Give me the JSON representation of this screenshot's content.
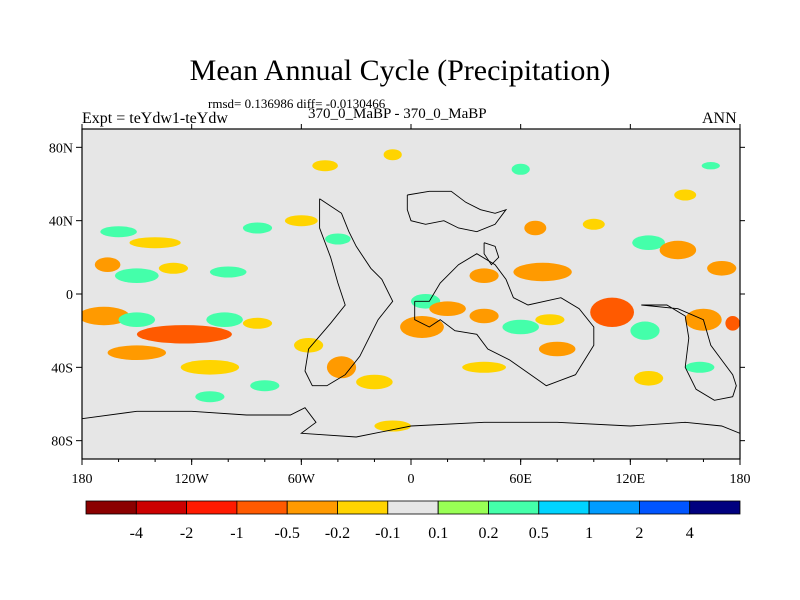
{
  "chart_data": {
    "type": "heatmap",
    "title": "Mean Annual Cycle (Precipitation)",
    "stats": "rmsd= 0.136986 diff= -0.0130466",
    "left_label": "Expt = teYdw1-teYdw",
    "subtitle": "370_0_MaBP - 370_0_MaBP",
    "season": "ANN",
    "xlim": [
      -180,
      180
    ],
    "ylim": [
      -90,
      90
    ],
    "x_ticks": [
      {
        "value": -180,
        "label": "180"
      },
      {
        "value": -120,
        "label": "120W"
      },
      {
        "value": -60,
        "label": "60W"
      },
      {
        "value": 0,
        "label": "0"
      },
      {
        "value": 60,
        "label": "60E"
      },
      {
        "value": 120,
        "label": "120E"
      },
      {
        "value": 180,
        "label": "180"
      }
    ],
    "y_ticks": [
      {
        "value": 80,
        "label": "80N"
      },
      {
        "value": 40,
        "label": "40N"
      },
      {
        "value": 0,
        "label": "0"
      },
      {
        "value": -40,
        "label": "40S"
      },
      {
        "value": -80,
        "label": "80S"
      }
    ],
    "colorbar": {
      "levels": [
        "-4",
        "-2",
        "-1",
        "-0.5",
        "-0.2",
        "-0.1",
        "0.1",
        "0.2",
        "0.5",
        "1",
        "2",
        "4"
      ],
      "colors": [
        "#8b0000",
        "#cc0000",
        "#ff1a00",
        "#ff5a00",
        "#ff9a00",
        "#ffd400",
        "#e6e6e6",
        "#99ff55",
        "#44ffaa",
        "#00d4ff",
        "#009cff",
        "#0055ff",
        "#00007f"
      ]
    },
    "regions": [
      {
        "lon": -166,
        "lat": 16,
        "value": -0.3,
        "rx": 7,
        "ry": 4
      },
      {
        "lon": -150,
        "lat": 10,
        "value": 0.3,
        "rx": 12,
        "ry": 4
      },
      {
        "lon": -130,
        "lat": 14,
        "value": -0.2,
        "rx": 8,
        "ry": 3
      },
      {
        "lon": -100,
        "lat": 12,
        "value": 0.3,
        "rx": 10,
        "ry": 3
      },
      {
        "lon": -140,
        "lat": 28,
        "value": -0.2,
        "rx": 14,
        "ry": 3
      },
      {
        "lon": -160,
        "lat": 34,
        "value": 0.3,
        "rx": 10,
        "ry": 3
      },
      {
        "lon": -84,
        "lat": 36,
        "value": 0.3,
        "rx": 8,
        "ry": 3
      },
      {
        "lon": -60,
        "lat": 40,
        "value": -0.2,
        "rx": 9,
        "ry": 3
      },
      {
        "lon": -40,
        "lat": 30,
        "value": 0.2,
        "rx": 7,
        "ry": 3
      },
      {
        "lon": -47,
        "lat": 70,
        "value": -0.2,
        "rx": 7,
        "ry": 3
      },
      {
        "lon": -10,
        "lat": 76,
        "value": -0.2,
        "rx": 5,
        "ry": 3
      },
      {
        "lon": 60,
        "lat": 68,
        "value": 0.2,
        "rx": 5,
        "ry": 3
      },
      {
        "lon": 150,
        "lat": 54,
        "value": -0.2,
        "rx": 6,
        "ry": 3
      },
      {
        "lon": 164,
        "lat": 70,
        "value": 0.2,
        "rx": 5,
        "ry": 2
      },
      {
        "lon": 68,
        "lat": 36,
        "value": -0.3,
        "rx": 6,
        "ry": 4
      },
      {
        "lon": 100,
        "lat": 38,
        "value": -0.2,
        "rx": 6,
        "ry": 3
      },
      {
        "lon": 130,
        "lat": 28,
        "value": 0.2,
        "rx": 9,
        "ry": 4
      },
      {
        "lon": 146,
        "lat": 24,
        "value": -0.4,
        "rx": 10,
        "ry": 5
      },
      {
        "lon": 170,
        "lat": 14,
        "value": -0.3,
        "rx": 8,
        "ry": 4
      },
      {
        "lon": 72,
        "lat": 12,
        "value": -0.5,
        "rx": 16,
        "ry": 5
      },
      {
        "lon": 40,
        "lat": 10,
        "value": -0.3,
        "rx": 8,
        "ry": 4
      },
      {
        "lon": 8,
        "lat": -4,
        "value": 0.3,
        "rx": 8,
        "ry": 4
      },
      {
        "lon": 20,
        "lat": -8,
        "value": -0.3,
        "rx": 10,
        "ry": 4
      },
      {
        "lon": 6,
        "lat": -18,
        "value": -0.5,
        "rx": 12,
        "ry": 6
      },
      {
        "lon": 40,
        "lat": -12,
        "value": -0.3,
        "rx": 8,
        "ry": 4
      },
      {
        "lon": 60,
        "lat": -18,
        "value": 0.2,
        "rx": 10,
        "ry": 4
      },
      {
        "lon": 76,
        "lat": -14,
        "value": -0.2,
        "rx": 8,
        "ry": 3
      },
      {
        "lon": 110,
        "lat": -10,
        "value": -0.6,
        "rx": 12,
        "ry": 8
      },
      {
        "lon": 128,
        "lat": -20,
        "value": 0.3,
        "rx": 8,
        "ry": 5
      },
      {
        "lon": 160,
        "lat": -14,
        "value": -0.4,
        "rx": 10,
        "ry": 6
      },
      {
        "lon": 176,
        "lat": -16,
        "value": -0.8,
        "rx": 4,
        "ry": 4
      },
      {
        "lon": -168,
        "lat": -12,
        "value": -0.5,
        "rx": 14,
        "ry": 5
      },
      {
        "lon": -150,
        "lat": -14,
        "value": 0.3,
        "rx": 10,
        "ry": 4
      },
      {
        "lon": -124,
        "lat": -22,
        "value": -0.6,
        "rx": 26,
        "ry": 5
      },
      {
        "lon": -102,
        "lat": -14,
        "value": 0.3,
        "rx": 10,
        "ry": 4
      },
      {
        "lon": -84,
        "lat": -16,
        "value": -0.2,
        "rx": 8,
        "ry": 3
      },
      {
        "lon": -150,
        "lat": -32,
        "value": -0.3,
        "rx": 16,
        "ry": 4
      },
      {
        "lon": -110,
        "lat": -40,
        "value": -0.2,
        "rx": 16,
        "ry": 4
      },
      {
        "lon": -56,
        "lat": -28,
        "value": -0.2,
        "rx": 8,
        "ry": 4
      },
      {
        "lon": -38,
        "lat": -40,
        "value": -0.4,
        "rx": 8,
        "ry": 6
      },
      {
        "lon": -20,
        "lat": -48,
        "value": -0.2,
        "rx": 10,
        "ry": 4
      },
      {
        "lon": 40,
        "lat": -40,
        "value": -0.2,
        "rx": 12,
        "ry": 3
      },
      {
        "lon": 80,
        "lat": -30,
        "value": -0.3,
        "rx": 10,
        "ry": 4
      },
      {
        "lon": 130,
        "lat": -46,
        "value": -0.2,
        "rx": 8,
        "ry": 4
      },
      {
        "lon": 158,
        "lat": -40,
        "value": 0.3,
        "rx": 8,
        "ry": 3
      },
      {
        "lon": -80,
        "lat": -50,
        "value": 0.2,
        "rx": 8,
        "ry": 3
      },
      {
        "lon": -10,
        "lat": -72,
        "value": -0.2,
        "rx": 10,
        "ry": 3
      },
      {
        "lon": -110,
        "lat": -56,
        "value": 0.2,
        "rx": 8,
        "ry": 3
      }
    ],
    "coastlines": [
      [
        [
          -50,
          52
        ],
        [
          -38,
          44
        ],
        [
          -34,
          34
        ],
        [
          -30,
          26
        ],
        [
          -22,
          14
        ],
        [
          -16,
          8
        ],
        [
          -10,
          -4
        ],
        [
          -18,
          -14
        ],
        [
          -22,
          -22
        ],
        [
          -28,
          -34
        ],
        [
          -36,
          -44
        ],
        [
          -46,
          -50
        ],
        [
          -54,
          -50
        ],
        [
          -58,
          -42
        ],
        [
          -56,
          -30
        ],
        [
          -44,
          -16
        ],
        [
          -36,
          -6
        ],
        [
          -40,
          6
        ],
        [
          -44,
          20
        ],
        [
          -50,
          36
        ],
        [
          -50,
          52
        ]
      ],
      [
        [
          2,
          -4
        ],
        [
          10,
          -4
        ],
        [
          16,
          6
        ],
        [
          26,
          16
        ],
        [
          36,
          22
        ],
        [
          46,
          16
        ],
        [
          52,
          8
        ],
        [
          56,
          -2
        ],
        [
          64,
          -6
        ],
        [
          82,
          -2
        ],
        [
          92,
          -8
        ],
        [
          100,
          -18
        ],
        [
          100,
          -28
        ],
        [
          90,
          -44
        ],
        [
          74,
          -50
        ],
        [
          54,
          -36
        ],
        [
          42,
          -30
        ],
        [
          36,
          -22
        ],
        [
          24,
          -20
        ],
        [
          16,
          -14
        ],
        [
          10,
          -18
        ],
        [
          2,
          -14
        ],
        [
          2,
          -4
        ]
      ],
      [
        [
          40,
          28
        ],
        [
          46,
          26
        ],
        [
          48,
          20
        ],
        [
          44,
          16
        ],
        [
          40,
          22
        ],
        [
          40,
          28
        ]
      ],
      [
        [
          126,
          -6
        ],
        [
          140,
          -6
        ],
        [
          150,
          -12
        ],
        [
          152,
          -24
        ],
        [
          150,
          -40
        ],
        [
          156,
          -52
        ],
        [
          166,
          -58
        ],
        [
          176,
          -56
        ],
        [
          178,
          -50
        ],
        [
          176,
          -44
        ],
        [
          170,
          -36
        ],
        [
          164,
          -28
        ],
        [
          160,
          -14
        ],
        [
          146,
          -8
        ],
        [
          126,
          -6
        ]
      ],
      [
        [
          -2,
          54
        ],
        [
          10,
          56
        ],
        [
          22,
          56
        ],
        [
          30,
          50
        ],
        [
          38,
          46
        ],
        [
          46,
          44
        ],
        [
          52,
          46
        ],
        [
          46,
          38
        ],
        [
          36,
          34
        ],
        [
          26,
          36
        ],
        [
          18,
          40
        ],
        [
          8,
          38
        ],
        [
          0,
          40
        ],
        [
          -2,
          46
        ],
        [
          -2,
          54
        ]
      ],
      [
        [
          -180,
          -68
        ],
        [
          -150,
          -64
        ],
        [
          -120,
          -64
        ],
        [
          -90,
          -66
        ],
        [
          -66,
          -66
        ],
        [
          -58,
          -62
        ],
        [
          -52,
          -70
        ],
        [
          -60,
          -76
        ],
        [
          -30,
          -78
        ],
        [
          0,
          -72
        ],
        [
          40,
          -70
        ],
        [
          80,
          -70
        ],
        [
          120,
          -72
        ],
        [
          150,
          -70
        ],
        [
          170,
          -72
        ],
        [
          180,
          -76
        ]
      ]
    ]
  }
}
